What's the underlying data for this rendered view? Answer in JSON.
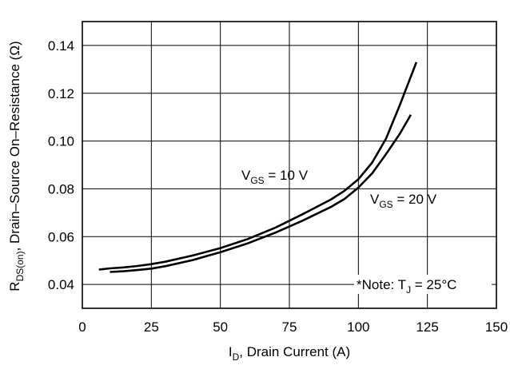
{
  "chart_data": {
    "type": "line",
    "title": "",
    "xlabel": {
      "main": "I",
      "sub": "D",
      "rest": ", Drain Current (A)"
    },
    "ylabel": {
      "main": "R",
      "sub": "DS(on)",
      "rest": ", Drain–Source On–Resistance (Ω)"
    },
    "xlim": [
      0,
      150
    ],
    "ylim": [
      0.03,
      0.15
    ],
    "xticks": [
      "0",
      "25",
      "50",
      "75",
      "100",
      "125",
      "150"
    ],
    "yticks": [
      "0.04",
      "0.06",
      "0.08",
      "0.10",
      "0.12",
      "0.14"
    ],
    "grid": true,
    "series": [
      {
        "label": {
          "main": "V",
          "sub": "GS",
          "rest": " = 10 V"
        },
        "x": [
          6,
          10,
          15,
          20,
          25,
          30,
          40,
          50,
          60,
          70,
          80,
          90,
          95,
          100,
          105,
          110,
          115,
          118,
          121
        ],
        "y": [
          0.0462,
          0.0467,
          0.0471,
          0.0477,
          0.0485,
          0.0495,
          0.0521,
          0.0552,
          0.059,
          0.0638,
          0.0695,
          0.0755,
          0.0792,
          0.084,
          0.091,
          0.101,
          0.115,
          0.124,
          0.133
        ]
      },
      {
        "label": {
          "main": "V",
          "sub": "GS",
          "rest": " = 20 V"
        },
        "x": [
          10,
          15,
          20,
          25,
          30,
          40,
          50,
          60,
          70,
          80,
          90,
          95,
          100,
          105,
          110,
          115,
          119
        ],
        "y": [
          0.0452,
          0.0455,
          0.046,
          0.0466,
          0.0476,
          0.0502,
          0.0535,
          0.0572,
          0.0617,
          0.0668,
          0.0724,
          0.0758,
          0.0805,
          0.0865,
          0.0945,
          0.103,
          0.111
        ]
      }
    ],
    "annotations": [
      {
        "main": "*Note: T",
        "sub": "J",
        "rest": " = 25°C"
      }
    ]
  }
}
